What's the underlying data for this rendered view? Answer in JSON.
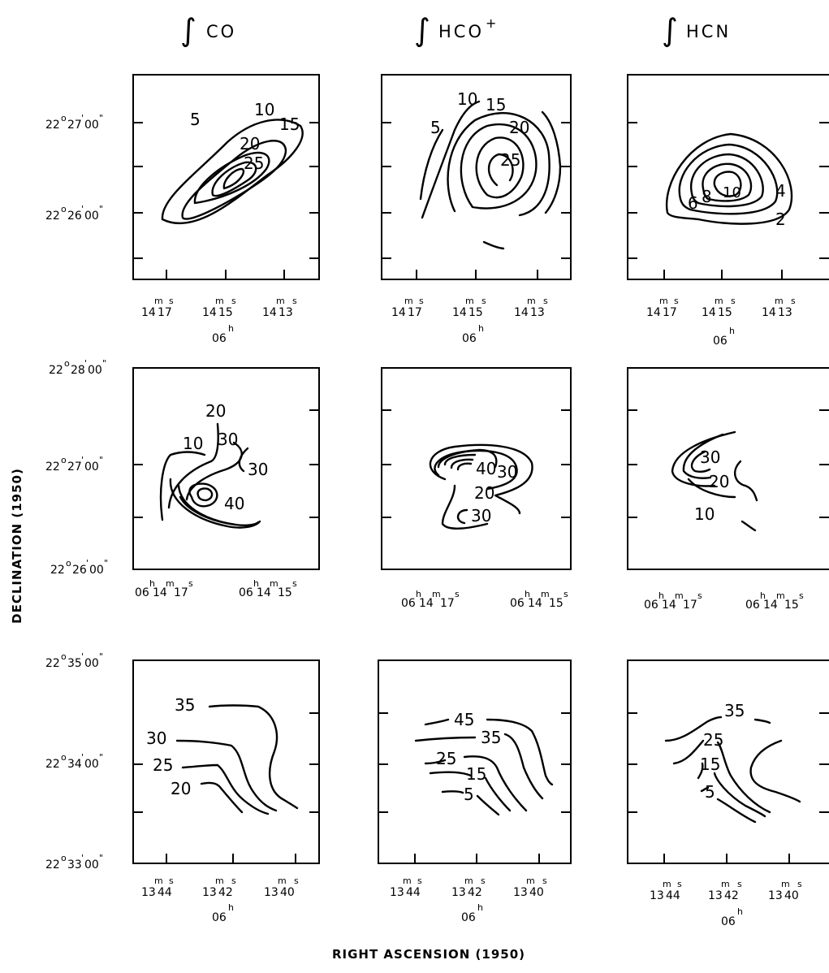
{
  "figure": {
    "xlabel": "RIGHT ASCENSION (1950)",
    "ylabel": "DECLINATION (1950)",
    "columns": [
      {
        "integral": "∫",
        "molecule": "CO",
        "sup": ""
      },
      {
        "integral": "∫",
        "molecule": "HCO",
        "sup": "+"
      },
      {
        "integral": "∫",
        "molecule": "HCN",
        "sup": ""
      }
    ]
  },
  "rows": [
    {
      "dec_ticks": [
        {
          "deg": "22",
          "min": "27",
          "sec": "00"
        },
        {
          "deg": "22",
          "min": "26",
          "sec": "00"
        }
      ],
      "ra_ticks": [
        {
          "m": "14",
          "s": "17"
        },
        {
          "m": "14",
          "s": "15"
        },
        {
          "m": "14",
          "s": "13"
        }
      ],
      "ra_hours": "06"
    },
    {
      "dec_ticks": [
        {
          "deg": "22",
          "min": "28",
          "sec": "00"
        },
        {
          "deg": "22",
          "min": "27",
          "sec": "00"
        },
        {
          "deg": "22",
          "min": "26",
          "sec": "00"
        }
      ],
      "ra_ticks": [
        {
          "h": "06",
          "m": "14",
          "s": "17"
        },
        {
          "h": "06",
          "m": "14",
          "s": "15"
        }
      ]
    },
    {
      "dec_ticks": [
        {
          "deg": "22",
          "min": "35",
          "sec": "00"
        },
        {
          "deg": "22",
          "min": "34",
          "sec": "00"
        },
        {
          "deg": "22",
          "min": "33",
          "sec": "00"
        }
      ],
      "ra_ticks": [
        {
          "m": "13",
          "s": "44"
        },
        {
          "m": "13",
          "s": "42"
        },
        {
          "m": "13",
          "s": "40"
        }
      ],
      "ra_hours": "06"
    }
  ],
  "chart_data": [
    {
      "type": "contour",
      "row": 1,
      "column": "CO",
      "contour_levels": [
        "5",
        "10",
        "15",
        "20",
        "25"
      ]
    },
    {
      "type": "contour",
      "row": 1,
      "column": "HCO+",
      "contour_levels": [
        "5",
        "10",
        "15",
        "20",
        "25"
      ]
    },
    {
      "type": "contour",
      "row": 1,
      "column": "HCN",
      "contour_levels": [
        "2",
        "4",
        "6",
        "8",
        "10"
      ]
    },
    {
      "type": "contour",
      "row": 2,
      "column": "CO",
      "contour_levels": [
        "10",
        "20",
        "30",
        "30",
        "40"
      ]
    },
    {
      "type": "contour",
      "row": 2,
      "column": "HCO+",
      "contour_levels": [
        "40",
        "30",
        "20",
        "30"
      ]
    },
    {
      "type": "contour",
      "row": 2,
      "column": "HCN",
      "contour_levels": [
        "30",
        "20",
        "10"
      ]
    },
    {
      "type": "contour",
      "row": 3,
      "column": "CO",
      "contour_levels": [
        "35",
        "30",
        "25",
        "20"
      ]
    },
    {
      "type": "contour",
      "row": 3,
      "column": "HCO+",
      "contour_levels": [
        "45",
        "35",
        "25",
        "15",
        "5"
      ]
    },
    {
      "type": "contour",
      "row": 3,
      "column": "HCN",
      "contour_levels": [
        "35",
        "25",
        "15",
        "5"
      ]
    }
  ]
}
